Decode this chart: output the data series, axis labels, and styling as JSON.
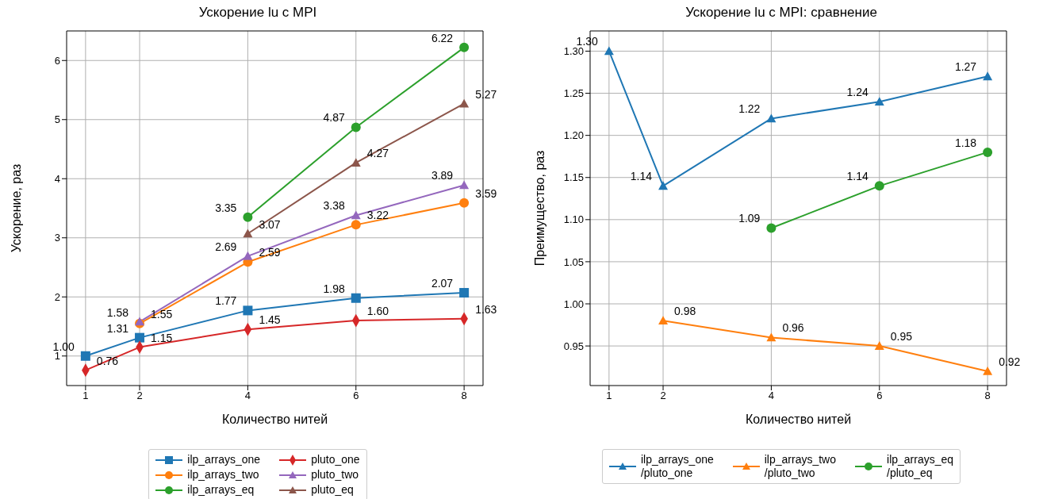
{
  "chart_data": [
    {
      "type": "line",
      "title": "Ускорение lu с MPI",
      "xlabel": "Количество нитей",
      "ylabel": "Ускорение, раз",
      "xlim": [
        0.65,
        8.35
      ],
      "ylim": [
        0.5,
        6.5
      ],
      "xticks": [
        1,
        2,
        4,
        6,
        8
      ],
      "yticks": [
        1,
        2,
        3,
        4,
        5,
        6
      ],
      "grid": true,
      "legend": "bottom",
      "series": [
        {
          "name": "ilp_arrays_one",
          "color": "#1f77b4",
          "marker": "square",
          "x": [
            1,
            2,
            4,
            6,
            8
          ],
          "values": [
            1.0,
            1.31,
            1.77,
            1.98,
            2.07
          ],
          "value_labels": [
            "1.00",
            "1.31",
            "1.77",
            "1.98",
            "2.07"
          ]
        },
        {
          "name": "ilp_arrays_two",
          "color": "#ff7f0e",
          "marker": "circle",
          "x": [
            2,
            4,
            6,
            8
          ],
          "values": [
            1.55,
            2.59,
            3.22,
            3.59
          ],
          "value_labels": [
            "1.55",
            "2.59",
            "3.22",
            "3.59"
          ]
        },
        {
          "name": "ilp_arrays_eq",
          "color": "#2ca02c",
          "marker": "circle",
          "x": [
            4,
            6,
            8
          ],
          "values": [
            3.35,
            4.87,
            6.22
          ],
          "value_labels": [
            "3.35",
            "4.87",
            "6.22"
          ]
        },
        {
          "name": "pluto_one",
          "color": "#d62728",
          "marker": "diamond",
          "x": [
            1,
            2,
            4,
            6,
            8
          ],
          "values": [
            0.76,
            1.15,
            1.45,
            1.6,
            1.63
          ],
          "value_labels": [
            "0.76",
            "1.15",
            "1.45",
            "1.60",
            "1.63"
          ]
        },
        {
          "name": "pluto_two",
          "color": "#9467bd",
          "marker": "triangle",
          "x": [
            2,
            4,
            6,
            8
          ],
          "values": [
            1.58,
            2.69,
            3.38,
            3.89
          ],
          "value_labels": [
            "1.58",
            "2.69",
            "3.38",
            "3.89"
          ]
        },
        {
          "name": "pluto_eq",
          "color": "#8c564b",
          "marker": "triangle",
          "x": [
            4,
            6,
            8
          ],
          "values": [
            3.07,
            4.27,
            5.27
          ],
          "value_labels": [
            "3.07",
            "4.27",
            "5.27"
          ]
        }
      ]
    },
    {
      "type": "line",
      "title": "Ускорение lu с MPI: сравнение",
      "xlabel": "Количество нитей",
      "ylabel": "Преимущество, раз",
      "xlim": [
        0.65,
        8.35
      ],
      "ylim": [
        0.903,
        1.324
      ],
      "xticks": [
        1,
        2,
        4,
        6,
        8
      ],
      "yticks": [
        {
          "value": 0.95,
          "label": "0.95"
        },
        {
          "value": 1.0,
          "label": "1.00"
        },
        {
          "value": 1.05,
          "label": "1.05"
        },
        {
          "value": 1.1,
          "label": "1.10"
        },
        {
          "value": 1.15,
          "label": "1.15"
        },
        {
          "value": 1.2,
          "label": "1.20"
        },
        {
          "value": 1.25,
          "label": "1.25"
        },
        {
          "value": 1.3,
          "label": "1.30"
        }
      ],
      "grid": true,
      "legend": "bottom",
      "series": [
        {
          "name": "ilp_arrays_one\n/pluto_one",
          "color": "#1f77b4",
          "marker": "triangle",
          "x": [
            1,
            2,
            4,
            6,
            8
          ],
          "values": [
            1.3,
            1.14,
            1.22,
            1.24,
            1.27
          ],
          "value_labels": [
            "1.30",
            "1.14",
            "1.22",
            "1.24",
            "1.27"
          ]
        },
        {
          "name": "ilp_arrays_two\n/pluto_two",
          "color": "#ff7f0e",
          "marker": "triangle",
          "x": [
            2,
            4,
            6,
            8
          ],
          "values": [
            0.98,
            0.96,
            0.95,
            0.92
          ],
          "value_labels": [
            "0.98",
            "0.96",
            "0.95",
            "0.92"
          ]
        },
        {
          "name": "ilp_arrays_eq\n/pluto_eq",
          "color": "#2ca02c",
          "marker": "circle",
          "x": [
            4,
            6,
            8
          ],
          "values": [
            1.09,
            1.14,
            1.18
          ],
          "value_labels": [
            "1.09",
            "1.14",
            "1.18"
          ]
        }
      ]
    }
  ]
}
